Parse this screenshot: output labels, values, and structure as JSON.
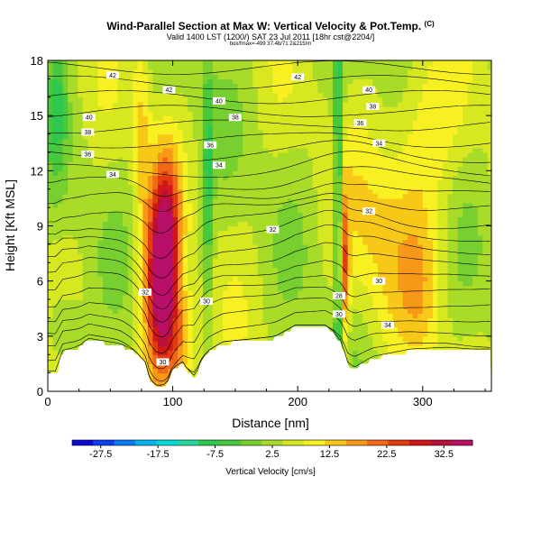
{
  "chart_data": {
    "type": "heatmap",
    "title": "Wind-Parallel Section at Max W: Vertical Velocity & Pot.Temp.",
    "title_mark": "(C)",
    "subtitle": "Valid 1400 LST (1200/) SAT 23 Jul 2011 [18hr cst@2204/]",
    "small_text": "box/fmax=-499 37.4b/71 2&215/m",
    "xlabel": "Distance [nm]",
    "ylabel": "Height [Kft MSL]",
    "xlim": [
      0,
      355
    ],
    "ylim": [
      0,
      18
    ],
    "x_ticks": [
      "0",
      "100",
      "200",
      "300"
    ],
    "x_tick_values": [
      0,
      100,
      200,
      300
    ],
    "y_ticks": [
      "0",
      "3",
      "6",
      "9",
      "12",
      "15",
      "18"
    ],
    "y_tick_values": [
      0,
      3,
      6,
      9,
      12,
      15,
      18
    ],
    "colorbar": {
      "label": "Vertical Velocity [cm/s]",
      "tick_labels": [
        "-27.5",
        "-17.5",
        "-7.5",
        "2.5",
        "12.5",
        "22.5",
        "32.5"
      ],
      "tick_values": [
        -27.5,
        -17.5,
        -7.5,
        2.5,
        12.5,
        22.5,
        32.5
      ],
      "range": [
        -32.5,
        37.5
      ],
      "colors": [
        "#0a0ad0",
        "#0a3ff0",
        "#0a7af5",
        "#00b4f0",
        "#00d8d8",
        "#22d8a0",
        "#2ec850",
        "#48c83c",
        "#78d030",
        "#a8dc28",
        "#d8e820",
        "#f8f020",
        "#f8c818",
        "#f89818",
        "#f06818",
        "#e03c10",
        "#d0181a",
        "#b8103c",
        "#b81068"
      ]
    },
    "isentropes": [
      {
        "label": "30",
        "y": 0.8
      },
      {
        "label": "32",
        "y": 5.5
      },
      {
        "label": "34",
        "y": 11.7
      },
      {
        "label": "36",
        "y": 12.9
      },
      {
        "label": "38",
        "y": 14.3
      },
      {
        "label": "40",
        "y": 15.5
      },
      {
        "label": "42",
        "y": 17.0
      }
    ],
    "contour_labels": [
      {
        "text": "42",
        "x": 52,
        "y": 17.2
      },
      {
        "text": "42",
        "x": 97,
        "y": 16.4
      },
      {
        "text": "42",
        "x": 200,
        "y": 17.1
      },
      {
        "text": "40",
        "x": 33,
        "y": 14.9
      },
      {
        "text": "40",
        "x": 137,
        "y": 15.8
      },
      {
        "text": "40",
        "x": 257,
        "y": 16.4
      },
      {
        "text": "38",
        "x": 32,
        "y": 14.1
      },
      {
        "text": "38",
        "x": 150,
        "y": 14.9
      },
      {
        "text": "38",
        "x": 260,
        "y": 15.5
      },
      {
        "text": "36",
        "x": 32,
        "y": 12.9
      },
      {
        "text": "36",
        "x": 130,
        "y": 13.4
      },
      {
        "text": "36",
        "x": 250,
        "y": 14.6
      },
      {
        "text": "34",
        "x": 52,
        "y": 11.8
      },
      {
        "text": "34",
        "x": 137,
        "y": 12.3
      },
      {
        "text": "34",
        "x": 265,
        "y": 13.5
      },
      {
        "text": "32",
        "x": 180,
        "y": 8.8
      },
      {
        "text": "32",
        "x": 257,
        "y": 9.8
      },
      {
        "text": "32",
        "x": 78,
        "y": 5.4
      },
      {
        "text": "30",
        "x": 127,
        "y": 4.9
      },
      {
        "text": "30",
        "x": 265,
        "y": 6.0
      },
      {
        "text": "28",
        "x": 233,
        "y": 5.2
      },
      {
        "text": "30",
        "x": 233,
        "y": 4.2
      },
      {
        "text": "34",
        "x": 272,
        "y": 3.6
      },
      {
        "text": "30",
        "x": 92,
        "y": 1.6
      }
    ],
    "grid": false
  }
}
